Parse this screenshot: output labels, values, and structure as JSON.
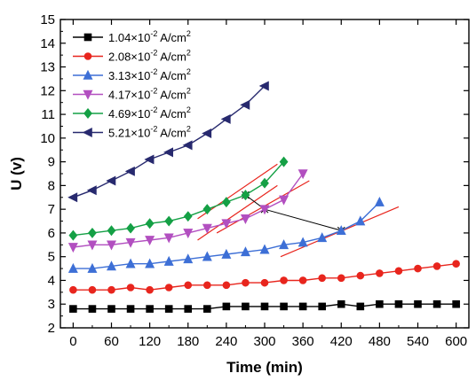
{
  "chart_data": {
    "type": "line",
    "xlabel": "Time (min)",
    "ylabel": "U (v)",
    "xlim": [
      -20,
      620
    ],
    "ylim": [
      2,
      15
    ],
    "xticks": [
      0,
      60,
      120,
      180,
      240,
      300,
      360,
      420,
      480,
      540,
      600
    ],
    "yticks": [
      2,
      3,
      4,
      5,
      6,
      7,
      8,
      9,
      10,
      11,
      12,
      13,
      14,
      15
    ],
    "legend_position": "top-left",
    "series": [
      {
        "name": "1.04×10-2 A/cm2",
        "name_parts": {
          "mant": "1.04×10",
          "exp": "-2",
          "unit": " A/cm",
          "uexp": "2"
        },
        "color": "#000000",
        "marker": "square",
        "x": [
          0,
          30,
          60,
          90,
          120,
          150,
          180,
          210,
          240,
          270,
          300,
          330,
          360,
          390,
          420,
          450,
          480,
          510,
          540,
          570,
          600
        ],
        "y": [
          2.8,
          2.8,
          2.8,
          2.8,
          2.8,
          2.8,
          2.8,
          2.8,
          2.9,
          2.9,
          2.9,
          2.9,
          2.9,
          2.9,
          3.0,
          2.9,
          3.0,
          3.0,
          3.0,
          3.0,
          3.0
        ]
      },
      {
        "name": "2.08×10-2 A/cm2",
        "name_parts": {
          "mant": "2.08×10",
          "exp": "-2",
          "unit": " A/cm",
          "uexp": "2"
        },
        "color": "#e8251d",
        "marker": "circle",
        "x": [
          0,
          30,
          60,
          90,
          120,
          150,
          180,
          210,
          240,
          270,
          300,
          330,
          360,
          390,
          420,
          450,
          480,
          510,
          540,
          570,
          600
        ],
        "y": [
          3.6,
          3.6,
          3.6,
          3.7,
          3.6,
          3.7,
          3.8,
          3.8,
          3.8,
          3.9,
          3.9,
          4.0,
          4.0,
          4.1,
          4.1,
          4.2,
          4.3,
          4.4,
          4.5,
          4.6,
          4.7
        ]
      },
      {
        "name": "3.13×10-2 A/cm2",
        "name_parts": {
          "mant": "3.13×10",
          "exp": "-2",
          "unit": " A/cm",
          "uexp": "2"
        },
        "color": "#3d6fd6",
        "marker": "triangle-up",
        "x": [
          0,
          30,
          60,
          90,
          120,
          150,
          180,
          210,
          240,
          270,
          300,
          330,
          360,
          390,
          420,
          450,
          480
        ],
        "y": [
          4.5,
          4.5,
          4.6,
          4.7,
          4.7,
          4.8,
          4.9,
          5.0,
          5.1,
          5.2,
          5.3,
          5.5,
          5.6,
          5.8,
          6.1,
          6.5,
          7.3
        ]
      },
      {
        "name": "4.17×10-2 A/cm2",
        "name_parts": {
          "mant": "4.17×10",
          "exp": "-2",
          "unit": " A/cm",
          "uexp": "2"
        },
        "color": "#b24fc0",
        "marker": "triangle-down",
        "x": [
          0,
          30,
          60,
          90,
          120,
          150,
          180,
          210,
          240,
          270,
          300,
          330,
          360
        ],
        "y": [
          5.4,
          5.5,
          5.5,
          5.6,
          5.7,
          5.8,
          6.0,
          6.2,
          6.4,
          6.6,
          7.0,
          7.4,
          8.5
        ]
      },
      {
        "name": "4.69×10-2 A/cm2",
        "name_parts": {
          "mant": "4.69×10",
          "exp": "-2",
          "unit": " A/cm",
          "uexp": "2"
        },
        "color": "#14a045",
        "marker": "diamond",
        "x": [
          0,
          30,
          60,
          90,
          120,
          150,
          180,
          210,
          240,
          270,
          300,
          330
        ],
        "y": [
          5.9,
          6.0,
          6.1,
          6.2,
          6.4,
          6.5,
          6.7,
          7.0,
          7.3,
          7.6,
          8.1,
          9.0
        ]
      },
      {
        "name": "5.21×10-2 A/cm2",
        "name_parts": {
          "mant": "5.21×10",
          "exp": "-2",
          "unit": " A/cm",
          "uexp": "2"
        },
        "color": "#27296e",
        "marker": "triangle-left",
        "x": [
          0,
          30,
          60,
          90,
          120,
          150,
          180,
          210,
          240,
          270,
          300
        ],
        "y": [
          7.5,
          7.8,
          8.2,
          8.6,
          9.1,
          9.4,
          9.7,
          10.2,
          10.8,
          11.4,
          12.2
        ]
      }
    ],
    "annotations": {
      "tangent_lines": [
        {
          "color": "#e8251d",
          "x": [
            325,
            510
          ],
          "y": [
            5.0,
            7.1
          ]
        },
        {
          "color": "#e8251d",
          "x": [
            225,
            370
          ],
          "y": [
            6.0,
            8.2
          ]
        },
        {
          "color": "#e8251d",
          "x": [
            195,
            320
          ],
          "y": [
            6.6,
            8.9
          ]
        },
        {
          "color": "#e8251d",
          "x": [
            195,
            320
          ],
          "y": [
            5.7,
            8.0
          ]
        }
      ],
      "connector": {
        "color": "#000000",
        "x": [
          270,
          300,
          420
        ],
        "y": [
          7.6,
          7.0,
          6.1
        ]
      }
    }
  }
}
